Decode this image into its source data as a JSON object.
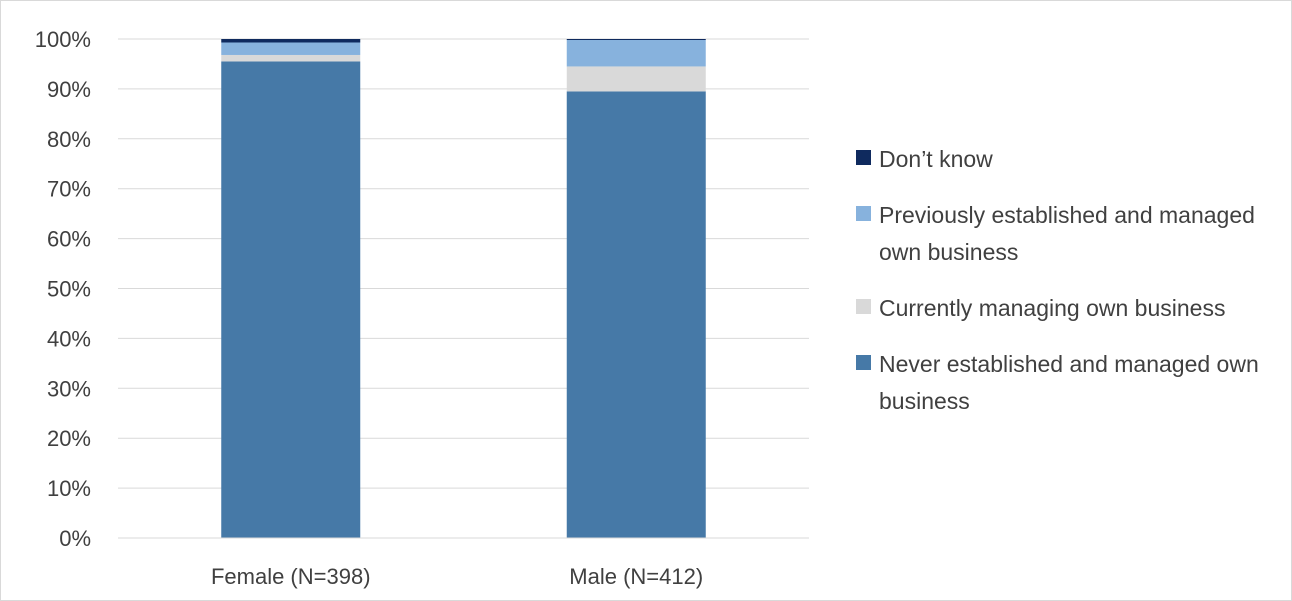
{
  "chart_data": {
    "type": "bar",
    "stacked": true,
    "categories": [
      "Female (N=398)",
      "Male (N=412)"
    ],
    "series": [
      {
        "name": "Never established and managed own business",
        "color": "#4679a7",
        "values": [
          95.5,
          89.5
        ]
      },
      {
        "name": "Currently managing own business",
        "color": "#d9d9d9",
        "values": [
          1.3,
          5.0
        ]
      },
      {
        "name": "Previously established and managed own business",
        "color": "#87b2dd",
        "values": [
          2.5,
          5.3
        ]
      },
      {
        "name": "Don’t know",
        "color": "#0f2a5e",
        "values": [
          0.7,
          0.2
        ]
      }
    ],
    "legend_order": [
      3,
      2,
      1,
      0
    ],
    "ylim": [
      0,
      100
    ],
    "yticks": [
      "0%",
      "10%",
      "20%",
      "30%",
      "40%",
      "50%",
      "60%",
      "70%",
      "80%",
      "90%",
      "100%"
    ],
    "title": "",
    "xlabel": "",
    "ylabel": "",
    "grid": true,
    "legend_position": "right"
  }
}
